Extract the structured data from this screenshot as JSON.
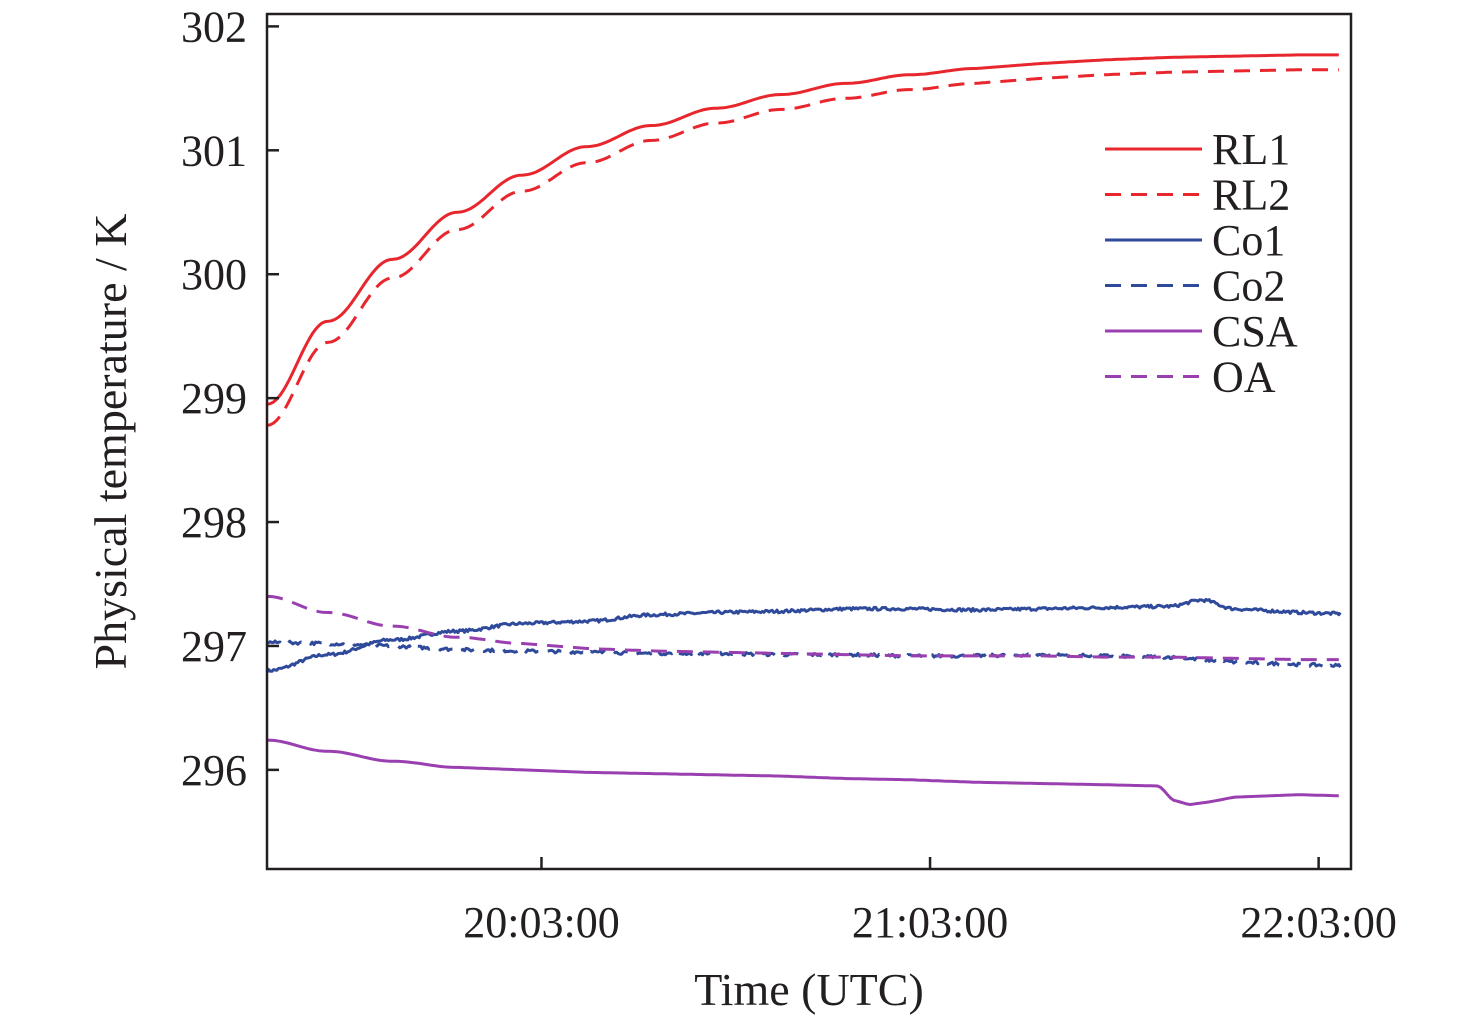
{
  "chart_data": {
    "type": "line",
    "xlabel": "Time (UTC)",
    "ylabel": "Physical temperature / K",
    "x_unit": "minutes after 19:20:37 UTC",
    "xlim": [
      "19:20:37",
      "22:08:00"
    ],
    "ylim": [
      295.2,
      302.1
    ],
    "x_ticks": [
      "20:03:00",
      "21:03:00",
      "22:03:00"
    ],
    "y_ticks": [
      296,
      297,
      298,
      299,
      300,
      301,
      302
    ],
    "legend_position": "upper-right",
    "grid": false,
    "colors": {
      "red": "#e8262d",
      "blue": "#2f4a9b",
      "purple": "#9a3fb0",
      "axis": "#231f20"
    },
    "series": [
      {
        "name": "RL1",
        "style": "solid",
        "color": "#e8262d",
        "noise": 0,
        "points": [
          [
            "19:20:37",
            298.95
          ],
          [
            "19:30:00",
            299.62
          ],
          [
            "19:40:00",
            300.12
          ],
          [
            "19:50:00",
            300.5
          ],
          [
            "20:00:00",
            300.8
          ],
          [
            "20:10:00",
            301.03
          ],
          [
            "20:20:00",
            301.2
          ],
          [
            "20:30:00",
            301.34
          ],
          [
            "20:40:00",
            301.45
          ],
          [
            "20:50:00",
            301.54
          ],
          [
            "21:00:00",
            301.61
          ],
          [
            "21:10:00",
            301.66
          ],
          [
            "21:20:00",
            301.7
          ],
          [
            "21:30:00",
            301.73
          ],
          [
            "21:40:00",
            301.75
          ],
          [
            "21:50:00",
            301.76
          ],
          [
            "22:00:00",
            301.77
          ],
          [
            "22:06:30",
            301.77
          ]
        ]
      },
      {
        "name": "RL2",
        "style": "dashed",
        "color": "#e8262d",
        "noise": 0,
        "points": [
          [
            "19:20:37",
            298.78
          ],
          [
            "19:30:00",
            299.45
          ],
          [
            "19:40:00",
            299.97
          ],
          [
            "19:50:00",
            300.36
          ],
          [
            "20:00:00",
            300.67
          ],
          [
            "20:10:00",
            300.9
          ],
          [
            "20:20:00",
            301.08
          ],
          [
            "20:30:00",
            301.22
          ],
          [
            "20:40:00",
            301.33
          ],
          [
            "20:50:00",
            301.42
          ],
          [
            "21:00:00",
            301.49
          ],
          [
            "21:10:00",
            301.54
          ],
          [
            "21:20:00",
            301.58
          ],
          [
            "21:30:00",
            301.61
          ],
          [
            "21:40:00",
            301.63
          ],
          [
            "21:50:00",
            301.64
          ],
          [
            "22:00:00",
            301.65
          ],
          [
            "22:06:30",
            301.65
          ]
        ]
      },
      {
        "name": "Co1",
        "style": "solid",
        "color": "#2f4a9b",
        "noise": 0.012,
        "points": [
          [
            "19:20:37",
            296.8
          ],
          [
            "19:30:00",
            296.93
          ],
          [
            "19:40:00",
            297.05
          ],
          [
            "19:50:00",
            297.12
          ],
          [
            "20:00:00",
            297.18
          ],
          [
            "20:10:00",
            297.2
          ],
          [
            "20:20:00",
            297.25
          ],
          [
            "20:30:00",
            297.27
          ],
          [
            "20:40:00",
            297.28
          ],
          [
            "20:50:00",
            297.3
          ],
          [
            "21:00:00",
            297.3
          ],
          [
            "21:10:00",
            297.29
          ],
          [
            "21:20:00",
            297.3
          ],
          [
            "21:30:00",
            297.31
          ],
          [
            "21:40:00",
            297.32
          ],
          [
            "21:45:00",
            297.37
          ],
          [
            "21:50:00",
            297.3
          ],
          [
            "22:00:00",
            297.27
          ],
          [
            "22:06:30",
            297.26
          ]
        ]
      },
      {
        "name": "Co2",
        "style": "dashed",
        "color": "#2f4a9b",
        "noise": 0.012,
        "points": [
          [
            "19:20:37",
            297.03
          ],
          [
            "19:30:00",
            297.02
          ],
          [
            "19:40:00",
            297.0
          ],
          [
            "19:50:00",
            296.97
          ],
          [
            "20:00:00",
            296.96
          ],
          [
            "20:10:00",
            296.95
          ],
          [
            "20:20:00",
            296.94
          ],
          [
            "20:30:00",
            296.94
          ],
          [
            "20:40:00",
            296.93
          ],
          [
            "20:50:00",
            296.93
          ],
          [
            "21:00:00",
            296.92
          ],
          [
            "21:10:00",
            296.92
          ],
          [
            "21:20:00",
            296.93
          ],
          [
            "21:30:00",
            296.92
          ],
          [
            "21:40:00",
            296.91
          ],
          [
            "21:50:00",
            296.87
          ],
          [
            "22:00:00",
            296.85
          ],
          [
            "22:06:30",
            296.84
          ]
        ]
      },
      {
        "name": "CSA",
        "style": "solid",
        "color": "#9a3fb0",
        "noise": 0,
        "points": [
          [
            "19:20:37",
            296.24
          ],
          [
            "19:30:00",
            296.15
          ],
          [
            "19:40:00",
            296.07
          ],
          [
            "19:50:00",
            296.02
          ],
          [
            "20:00:00",
            296.0
          ],
          [
            "20:10:00",
            295.98
          ],
          [
            "20:20:00",
            295.97
          ],
          [
            "20:30:00",
            295.96
          ],
          [
            "20:40:00",
            295.95
          ],
          [
            "20:50:00",
            295.93
          ],
          [
            "21:00:00",
            295.92
          ],
          [
            "21:10:00",
            295.9
          ],
          [
            "21:20:00",
            295.89
          ],
          [
            "21:30:00",
            295.88
          ],
          [
            "21:38:00",
            295.87
          ],
          [
            "21:41:00",
            295.75
          ],
          [
            "21:43:00",
            295.72
          ],
          [
            "21:46:00",
            295.74
          ],
          [
            "21:50:00",
            295.78
          ],
          [
            "22:00:00",
            295.8
          ],
          [
            "22:06:30",
            295.79
          ]
        ]
      },
      {
        "name": "OA",
        "style": "dashed",
        "color": "#9a3fb0",
        "noise": 0,
        "points": [
          [
            "19:20:37",
            297.4
          ],
          [
            "19:30:00",
            297.27
          ],
          [
            "19:40:00",
            297.16
          ],
          [
            "19:50:00",
            297.07
          ],
          [
            "20:00:00",
            297.02
          ],
          [
            "20:10:00",
            296.98
          ],
          [
            "20:20:00",
            296.96
          ],
          [
            "20:30:00",
            296.95
          ],
          [
            "20:40:00",
            296.94
          ],
          [
            "20:50:00",
            296.93
          ],
          [
            "21:00:00",
            296.92
          ],
          [
            "21:10:00",
            296.92
          ],
          [
            "21:20:00",
            296.92
          ],
          [
            "21:30:00",
            296.91
          ],
          [
            "21:40:00",
            296.91
          ],
          [
            "21:50:00",
            296.9
          ],
          [
            "22:00:00",
            296.89
          ],
          [
            "22:06:30",
            296.89
          ]
        ]
      }
    ]
  }
}
